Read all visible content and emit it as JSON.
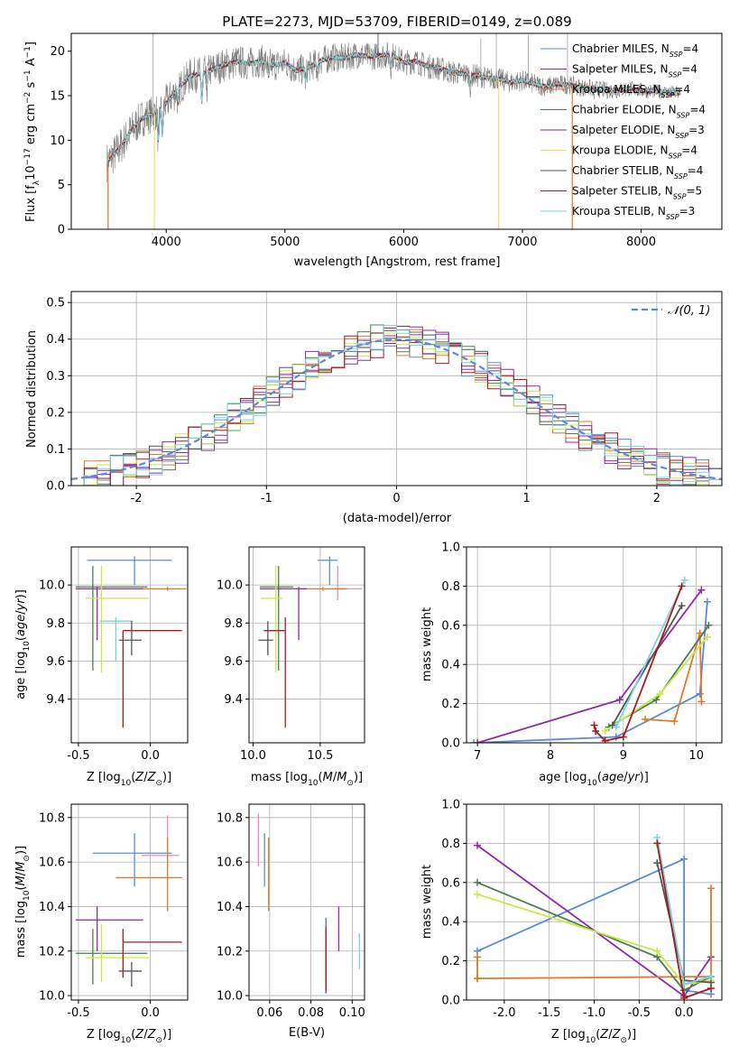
{
  "colors": {
    "Chabrier MILES": "#5b8bd8",
    "Salpeter MILES": "#8e2aa6",
    "Kroupa MILES": "#e2782a",
    "Chabrier ELODIE": "#4e7d4e",
    "Salpeter ELODIE": "#8e2aa6",
    "Kroupa ELODIE": "#e6e070",
    "Chabrier STELIB": "#555555",
    "Salpeter STELIB": "#a51c1c",
    "Kroupa STELIB": "#7dd3dc",
    "lime": "#c8e84a",
    "pink": "#e88cc0",
    "grid": "#b0b0b0",
    "data": "#808080"
  },
  "chart_data": [
    {
      "type": "line",
      "title": "PLATE=2273, MJD=53709, FIBERID=0149, z=0.089",
      "xlabel": "wavelength [Angstrom, rest frame]",
      "ylabel": "Flux [fλ10⁻¹⁷ erg cm⁻² s⁻¹ A⁻¹]",
      "xlim": [
        3200,
        8680
      ],
      "ylim": [
        0,
        22
      ],
      "xticks": [
        4000,
        5000,
        6000,
        7000,
        8000
      ],
      "yticks": [
        0,
        5,
        10,
        15,
        20
      ],
      "legend_position": "right",
      "legend": [
        "Chabrier MILES, N_SSP=4",
        "Salpeter MILES, N_SSP=4",
        "Kroupa MILES, N_SSP=4",
        "Chabrier ELODIE, N_SSP=4",
        "Salpeter ELODIE, N_SSP=3",
        "Kroupa ELODIE, N_SSP=4",
        "Chabrier STELIB, N_SSP=4",
        "Salpeter STELIB, N_SSP=5",
        "Kroupa STELIB, N_SSP=3"
      ],
      "continuum": [
        [
          3500,
          7.5
        ],
        [
          3600,
          9
        ],
        [
          3700,
          11
        ],
        [
          3800,
          12.5
        ],
        [
          3900,
          13
        ],
        [
          4000,
          14.2
        ],
        [
          4100,
          15.8
        ],
        [
          4200,
          17.2
        ],
        [
          4300,
          17.5
        ],
        [
          4400,
          18
        ],
        [
          4500,
          18.5
        ],
        [
          4600,
          18.8
        ],
        [
          4700,
          18.6
        ],
        [
          4800,
          18.9
        ],
        [
          4900,
          18.4
        ],
        [
          5000,
          18.7
        ],
        [
          5100,
          17.8
        ],
        [
          5200,
          18.2
        ],
        [
          5300,
          18.9
        ],
        [
          5400,
          19.3
        ],
        [
          5500,
          19.2
        ],
        [
          5600,
          19.6
        ],
        [
          5700,
          19.4
        ],
        [
          5800,
          19.5
        ],
        [
          5900,
          19.6
        ],
        [
          6000,
          18.7
        ],
        [
          6100,
          18.9
        ],
        [
          6200,
          18.3
        ],
        [
          6300,
          18.1
        ],
        [
          6400,
          17.6
        ],
        [
          6500,
          17.5
        ],
        [
          6600,
          17.3
        ],
        [
          6700,
          17
        ],
        [
          6800,
          16.9
        ],
        [
          6900,
          16.5
        ],
        [
          7000,
          16.7
        ],
        [
          7100,
          16.3
        ],
        [
          7200,
          16
        ],
        [
          7300,
          16.3
        ],
        [
          7400,
          16.2
        ],
        [
          7500,
          15.9
        ],
        [
          7600,
          15.8
        ],
        [
          7700,
          15.6
        ],
        [
          7800,
          15.6
        ],
        [
          7900,
          15.8
        ],
        [
          8000,
          15.6
        ],
        [
          8100,
          15.5
        ],
        [
          8200,
          15.4
        ],
        [
          8300,
          15.3
        ]
      ]
    },
    {
      "type": "line",
      "xlabel": "(data-model)/error",
      "ylabel": "Normed distribution",
      "xlim": [
        -2.5,
        2.5
      ],
      "ylim": [
        0,
        0.53
      ],
      "xticks": [
        -2,
        -1,
        0,
        1,
        2
      ],
      "yticks": [
        0.0,
        0.1,
        0.2,
        0.3,
        0.4,
        0.5
      ],
      "legend": [
        "𝒩(0, 1)"
      ],
      "legend_position": "top-right",
      "gaussian": {
        "mean": 0,
        "sigma": 1
      }
    },
    {
      "type": "scatter",
      "xlabel": "Z [log₁₀(Z/Z⊙)]",
      "ylabel": "age  [log₁₀(age/yr)]",
      "xlim": [
        -0.55,
        0.26
      ],
      "ylim": [
        9.17,
        10.2
      ],
      "xticks": [
        -0.5,
        0.0
      ],
      "yticks": [
        9.4,
        9.6,
        9.8,
        10.0
      ]
    },
    {
      "type": "scatter",
      "xlabel": "mass [log₁₀(M/M⊙)]",
      "xlim": [
        9.97,
        10.83
      ],
      "ylim": [
        9.17,
        10.2
      ],
      "xticks": [
        10.0,
        10.5
      ],
      "yticks": [
        9.4,
        9.6,
        9.8,
        10.0
      ]
    },
    {
      "type": "line",
      "xlabel": "age  [log₁₀(age/yr)]",
      "ylabel": "mass weight",
      "xlim": [
        6.85,
        10.35
      ],
      "ylim": [
        0,
        1
      ],
      "xticks": [
        7,
        8,
        9,
        10
      ],
      "yticks": [
        0.0,
        0.2,
        0.4,
        0.6,
        0.8,
        1.0
      ]
    },
    {
      "type": "scatter",
      "xlabel": "Z [log₁₀(Z/Z⊙)]",
      "ylabel": "mass [log₁₀(M/M⊙)]",
      "xlim": [
        -0.55,
        0.26
      ],
      "ylim": [
        9.98,
        10.86
      ],
      "xticks": [
        -0.5,
        0.0
      ],
      "yticks": [
        10.0,
        10.2,
        10.4,
        10.6,
        10.8
      ]
    },
    {
      "type": "scatter",
      "xlabel": "E(B-V)",
      "xlim": [
        0.05,
        0.106
      ],
      "ylim": [
        9.98,
        10.86
      ],
      "xticks": [
        0.06,
        0.08,
        0.1
      ],
      "yticks": [
        10.0,
        10.2,
        10.4,
        10.6,
        10.8
      ]
    },
    {
      "type": "line",
      "xlabel": "Z [log₁₀(Z/Z⊙)]",
      "ylabel": "mass weight",
      "xlim": [
        -2.42,
        0.42
      ],
      "ylim": [
        0,
        1
      ],
      "xticks": [
        -2.0,
        -1.5,
        -1.0,
        -0.5,
        0.0
      ],
      "yticks": [
        0.0,
        0.2,
        0.4,
        0.6,
        0.8,
        1.0
      ]
    }
  ],
  "errorbars_age_Z": [
    {
      "c": "#5b8bd8",
      "x": -0.11,
      "y": 10.13,
      "xl": -0.44,
      "xh": 0.15,
      "yl": 10.0,
      "yh": 10.15
    },
    {
      "c": "#e2782a",
      "x": 0.12,
      "y": 9.98,
      "xl": -0.06,
      "xh": 0.25,
      "yl": 9.97,
      "yh": 9.99
    },
    {
      "c": "#4e7d4e",
      "x": -0.4,
      "y": 9.99,
      "xl": -0.52,
      "xh": -0.02,
      "yl": 9.55,
      "yh": 10.1
    },
    {
      "c": "#8e2aa6",
      "x": -0.37,
      "y": 9.98,
      "xl": -0.52,
      "xh": -0.05,
      "yl": 9.71,
      "yh": 9.99
    },
    {
      "c": "#c8e84a",
      "x": -0.34,
      "y": 9.93,
      "xl": -0.45,
      "xh": -0.01,
      "yl": 9.54,
      "yh": 10.1
    },
    {
      "c": "#7dd3dc",
      "x": -0.24,
      "y": 9.81,
      "xl": -0.35,
      "xh": -0.12,
      "yl": 9.6,
      "yh": 9.83
    },
    {
      "c": "#555555",
      "x": -0.13,
      "y": 9.71,
      "xl": -0.22,
      "xh": -0.06,
      "yl": 9.63,
      "yh": 9.81
    },
    {
      "c": "#a51c1c",
      "x": -0.19,
      "y": 9.76,
      "xl": -0.19,
      "xh": 0.22,
      "yl": 9.25,
      "yh": 9.76
    }
  ],
  "errorbars_age_mass": [
    {
      "c": "#5b8bd8",
      "x": 10.57,
      "y": 10.13,
      "xl": 10.48,
      "xh": 10.63,
      "yl": 10.0,
      "yh": 10.15
    },
    {
      "c": "#e88cc0",
      "x": 10.63,
      "y": 9.98,
      "xl": 10.6,
      "xh": 10.81,
      "yl": 9.92,
      "yh": 10.1
    },
    {
      "c": "#e2782a",
      "x": 10.52,
      "y": 9.98,
      "xl": 10.35,
      "xh": 10.7,
      "yl": 9.97,
      "yh": 9.99
    },
    {
      "c": "#4e7d4e",
      "x": 10.19,
      "y": 9.99,
      "xl": 10.05,
      "xh": 10.3,
      "yl": 9.55,
      "yh": 10.1
    },
    {
      "c": "#8e2aa6",
      "x": 10.34,
      "y": 9.98,
      "xl": 10.05,
      "xh": 10.4,
      "yl": 9.71,
      "yh": 9.99
    },
    {
      "c": "#c8e84a",
      "x": 10.17,
      "y": 9.93,
      "xl": 10.06,
      "xh": 10.22,
      "yl": 9.54,
      "yh": 10.1
    },
    {
      "c": "#555555",
      "x": 10.11,
      "y": 9.71,
      "xl": 10.04,
      "xh": 10.15,
      "yl": 9.63,
      "yh": 9.81
    },
    {
      "c": "#a51c1c",
      "x": 10.24,
      "y": 9.76,
      "xl": 10.08,
      "xh": 10.24,
      "yl": 9.25,
      "yh": 9.83
    }
  ],
  "errorbars_mass_Z": [
    {
      "c": "#5b8bd8",
      "x": -0.11,
      "y": 10.64,
      "xl": -0.4,
      "xh": 0.15,
      "yl": 10.49,
      "yh": 10.73
    },
    {
      "c": "#e88cc0",
      "x": 0.12,
      "y": 10.63,
      "xl": -0.06,
      "xh": 0.2,
      "yl": 10.58,
      "yh": 10.81
    },
    {
      "c": "#e2782a",
      "x": 0.12,
      "y": 10.53,
      "xl": -0.24,
      "xh": 0.22,
      "yl": 10.38,
      "yh": 10.71
    },
    {
      "c": "#4e7d4e",
      "x": -0.4,
      "y": 10.19,
      "xl": -0.52,
      "xh": -0.02,
      "yl": 10.05,
      "yh": 10.3
    },
    {
      "c": "#8e2aa6",
      "x": -0.37,
      "y": 10.34,
      "xl": -0.52,
      "xh": -0.05,
      "yl": 10.2,
      "yh": 10.4
    },
    {
      "c": "#c8e84a",
      "x": -0.34,
      "y": 10.17,
      "xl": -0.45,
      "xh": -0.01,
      "yl": 10.06,
      "yh": 10.32
    },
    {
      "c": "#555555",
      "x": -0.13,
      "y": 10.11,
      "xl": -0.22,
      "xh": -0.06,
      "yl": 10.04,
      "yh": 10.15
    },
    {
      "c": "#a51c1c",
      "x": -0.19,
      "y": 10.24,
      "xl": -0.19,
      "xh": 0.22,
      "yl": 10.08,
      "yh": 10.3
    }
  ],
  "errorbars_mass_ebv": [
    {
      "c": "#e88cc0",
      "x": 0.0545,
      "yl": 10.58,
      "yh": 10.82
    },
    {
      "c": "#5b8bd8",
      "x": 0.0575,
      "yl": 10.49,
      "yh": 10.73
    },
    {
      "c": "#e2782a",
      "x": 0.0595,
      "yl": 10.38,
      "yh": 10.71
    },
    {
      "c": "#4e7d4e",
      "x": 0.0873,
      "yl": 10.05,
      "yh": 10.35
    },
    {
      "c": "#555555",
      "x": 0.0873,
      "yl": 10.01,
      "yh": 10.31
    },
    {
      "c": "#a51c1c",
      "x": 0.0873,
      "yl": 10.02,
      "yh": 10.3
    },
    {
      "c": "#8e2aa6",
      "x": 0.0935,
      "yl": 10.2,
      "yh": 10.4
    },
    {
      "c": "#7dd3dc",
      "x": 0.1035,
      "yl": 10.12,
      "yh": 10.28
    }
  ],
  "weights_age": [
    {
      "c": "#5b8bd8",
      "pts": [
        [
          6.95,
          0.0
        ],
        [
          8.9,
          0.03
        ],
        [
          10.05,
          0.25
        ],
        [
          10.15,
          0.72
        ]
      ]
    },
    {
      "c": "#8e2aa6",
      "pts": [
        [
          7.0,
          0.0
        ],
        [
          8.95,
          0.22
        ],
        [
          10.07,
          0.78
        ]
      ]
    },
    {
      "c": "#e2782a",
      "pts": [
        [
          9.3,
          0.12
        ],
        [
          9.7,
          0.11
        ],
        [
          10.05,
          0.56
        ],
        [
          10.07,
          0.21
        ]
      ]
    },
    {
      "c": "#4e7d4e",
      "pts": [
        [
          8.8,
          0.08
        ],
        [
          9.45,
          0.22
        ],
        [
          10.17,
          0.6
        ]
      ]
    },
    {
      "c": "#c8e84a",
      "pts": [
        [
          8.75,
          0.06
        ],
        [
          9.5,
          0.25
        ],
        [
          10.15,
          0.54
        ]
      ]
    },
    {
      "c": "#555555",
      "pts": [
        [
          8.85,
          0.09
        ],
        [
          9.8,
          0.7
        ]
      ]
    },
    {
      "c": "#7dd3dc",
      "pts": [
        [
          8.9,
          0.08
        ],
        [
          9.84,
          0.83
        ]
      ]
    },
    {
      "c": "#a51c1c",
      "pts": [
        [
          8.6,
          0.09
        ],
        [
          8.62,
          0.06
        ],
        [
          8.75,
          0.01
        ],
        [
          9.0,
          0.03
        ],
        [
          9.8,
          0.8
        ]
      ]
    }
  ],
  "weights_Z": [
    {
      "c": "#5b8bd8",
      "pts": [
        [
          -2.3,
          0.25
        ],
        [
          0.0,
          0.72
        ],
        [
          0.0,
          0.05
        ],
        [
          0.3,
          0.03
        ]
      ]
    },
    {
      "c": "#8e2aa6",
      "pts": [
        [
          -2.3,
          0.79
        ],
        [
          0.0,
          0.02
        ],
        [
          0.3,
          0.22
        ]
      ]
    },
    {
      "c": "#e2782a",
      "pts": [
        [
          -2.3,
          0.11
        ],
        [
          -2.3,
          0.22
        ],
        [
          -2.3,
          0.11
        ],
        [
          0.3,
          0.12
        ],
        [
          0.3,
          0.57
        ]
      ]
    },
    {
      "c": "#4e7d4e",
      "pts": [
        [
          -2.3,
          0.6
        ],
        [
          -0.3,
          0.22
        ],
        [
          0.0,
          0.05
        ],
        [
          0.3,
          0.12
        ]
      ]
    },
    {
      "c": "#c8e84a",
      "pts": [
        [
          -2.3,
          0.54
        ],
        [
          -0.3,
          0.25
        ],
        [
          0.0,
          0.08
        ],
        [
          0.3,
          0.1
        ]
      ]
    },
    {
      "c": "#555555",
      "pts": [
        [
          -0.3,
          0.7
        ],
        [
          0.0,
          0.1
        ],
        [
          0.3,
          0.09
        ]
      ]
    },
    {
      "c": "#7dd3dc",
      "pts": [
        [
          -0.3,
          0.83
        ],
        [
          0.0,
          0.08
        ],
        [
          0.3,
          0.12
        ]
      ]
    },
    {
      "c": "#a51c1c",
      "pts": [
        [
          -0.3,
          0.8
        ],
        [
          0.0,
          0.01
        ],
        [
          0.3,
          0.06
        ]
      ]
    }
  ]
}
